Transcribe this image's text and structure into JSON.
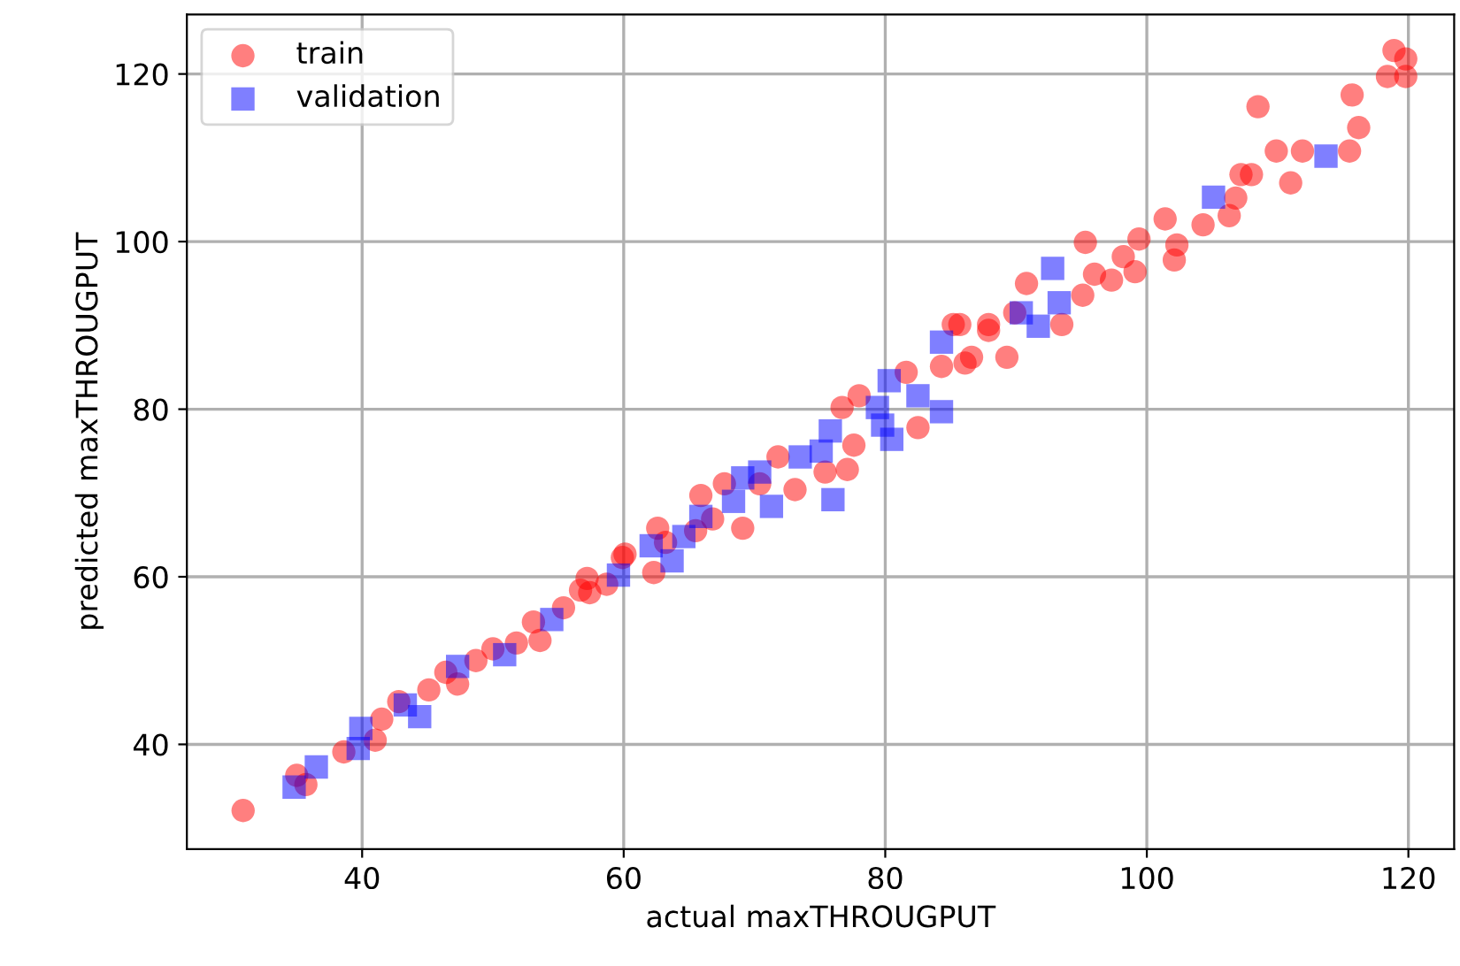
{
  "chart_data": {
    "type": "scatter",
    "xlabel": "actual maxTHROUGPUT",
    "ylabel": "predicted maxTHROUGPUT",
    "xlim": [
      26.6,
      123.5
    ],
    "ylim": [
      27.5,
      127.1
    ],
    "xticks": [
      40,
      60,
      80,
      100,
      120
    ],
    "yticks": [
      40,
      60,
      80,
      100,
      120
    ],
    "grid": true,
    "legend": "top left",
    "series": [
      {
        "name": "train",
        "color": "#ff0000",
        "marker": "circle",
        "x": [
          118.9,
          119.8,
          118.4,
          119.8,
          115.7,
          108.5,
          116.2,
          115.5,
          109.9,
          111.9,
          111.0,
          107.2,
          108.0,
          106.8,
          106.3,
          104.3,
          101.4,
          102.3,
          102.1,
          99.4,
          98.2,
          99.1,
          96.0,
          97.3,
          95.3,
          95.1,
          90.8,
          93.5,
          89.9,
          87.9,
          85.7,
          89.3,
          86.6,
          85.2,
          87.9,
          84.3,
          86.1,
          81.6,
          78.0,
          76.7,
          82.5,
          77.6,
          77.1,
          75.4,
          73.1,
          71.8,
          70.4,
          69.1,
          67.7,
          65.9,
          66.8,
          65.5,
          62.6,
          63.2,
          62.3,
          60.1,
          57.4,
          58.7,
          30.9,
          35.0,
          35.7,
          38.6,
          41.0,
          41.5,
          42.8,
          45.1,
          46.4,
          48.7,
          50.0,
          51.8,
          53.1,
          55.4,
          56.7,
          57.2,
          59.9,
          53.6,
          47.3
        ],
        "values": [
          122.8,
          121.8,
          119.7,
          119.7,
          117.5,
          116.1,
          113.6,
          110.8,
          110.8,
          110.8,
          107.0,
          108.0,
          108.0,
          105.2,
          103.1,
          102.0,
          102.7,
          99.6,
          97.8,
          100.3,
          98.2,
          96.4,
          96.1,
          95.4,
          99.9,
          93.6,
          95.0,
          90.1,
          91.5,
          90.1,
          90.1,
          86.2,
          86.2,
          90.1,
          89.4,
          85.1,
          85.5,
          84.4,
          81.6,
          80.2,
          77.8,
          75.7,
          72.8,
          72.5,
          70.4,
          74.3,
          71.1,
          65.8,
          71.1,
          69.7,
          66.9,
          65.5,
          65.8,
          64.1,
          60.5,
          62.7,
          58.1,
          59.1,
          32.1,
          36.3,
          35.2,
          39.1,
          40.5,
          43.0,
          45.1,
          46.5,
          48.6,
          50.0,
          51.4,
          52.1,
          54.6,
          56.3,
          58.4,
          59.8,
          62.3,
          52.4,
          47.2
        ]
      },
      {
        "name": "validation",
        "color": "#0000ff",
        "marker": "square",
        "x": [
          113.7,
          105.1,
          92.8,
          93.3,
          90.4,
          91.7,
          84.3,
          80.3,
          82.5,
          84.3,
          79.4,
          79.8,
          80.5,
          75.8,
          75.1,
          73.5,
          76.0,
          70.4,
          69.1,
          68.4,
          71.3,
          65.9,
          64.6,
          62.1,
          63.7,
          59.6,
          34.8,
          36.5,
          39.9,
          39.7,
          43.3,
          44.4,
          47.3,
          50.9,
          54.5
        ],
        "values": [
          110.2,
          105.3,
          96.8,
          92.7,
          91.5,
          89.9,
          88.0,
          83.4,
          81.6,
          79.7,
          80.2,
          78.1,
          76.4,
          77.4,
          75.0,
          74.3,
          69.2,
          72.5,
          71.8,
          69.0,
          68.4,
          67.2,
          64.8,
          63.7,
          61.9,
          60.2,
          34.9,
          37.3,
          41.9,
          39.5,
          44.7,
          43.3,
          49.3,
          50.7,
          54.9
        ]
      }
    ]
  }
}
